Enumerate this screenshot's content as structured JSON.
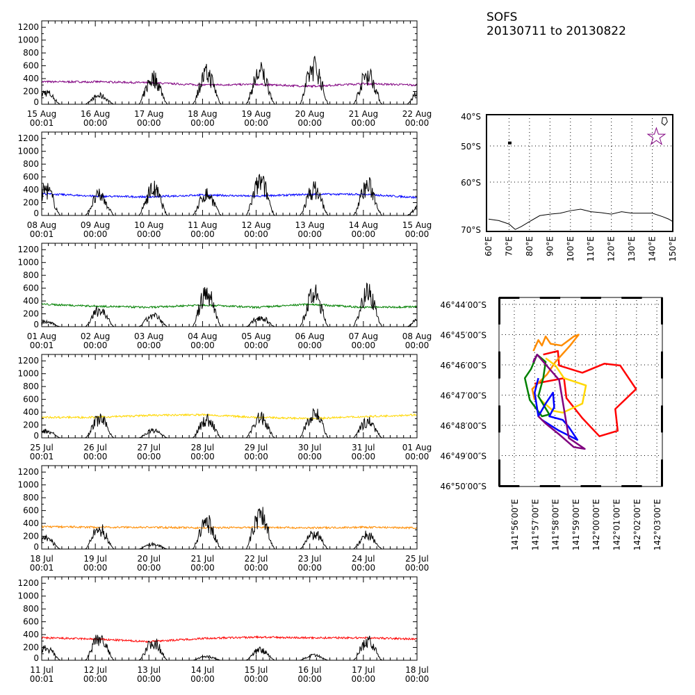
{
  "title": {
    "line1": "SOFS",
    "line2": "20130711 to 20130822"
  },
  "chart_data": [
    {
      "type": "line",
      "ylim": [
        0,
        1300
      ],
      "yticks": [
        "0",
        "200",
        "400",
        "600",
        "800",
        "1000",
        "1200"
      ],
      "xticks": [
        [
          "15 Aug",
          "00:01"
        ],
        [
          "16 Aug",
          "00:00"
        ],
        [
          "17 Aug",
          "00:00"
        ],
        [
          "18 Aug",
          "00:00"
        ],
        [
          "19 Aug",
          "00:00"
        ],
        [
          "20 Aug",
          "00:00"
        ],
        [
          "21 Aug",
          "00:00"
        ],
        [
          "22 Aug",
          "00:00"
        ]
      ],
      "series": [
        {
          "color": "#800080",
          "daily_level": [
            350,
            350,
            335,
            300,
            310,
            280,
            320,
            300,
            310
          ]
        },
        {
          "color": "#000000",
          "daily_peak": [
            250,
            180,
            550,
            640,
            680,
            790,
            640,
            300
          ]
        }
      ]
    },
    {
      "type": "line",
      "ylim": [
        0,
        1300
      ],
      "yticks": [
        "0",
        "200",
        "400",
        "600",
        "800",
        "1000",
        "1200"
      ],
      "xticks": [
        [
          "08 Aug",
          "00:01"
        ],
        [
          "09 Aug",
          "00:00"
        ],
        [
          "10 Aug",
          "00:00"
        ],
        [
          "11 Aug",
          "00:00"
        ],
        [
          "12 Aug",
          "00:00"
        ],
        [
          "13 Aug",
          "00:00"
        ],
        [
          "14 Aug",
          "00:00"
        ],
        [
          "15 Aug",
          "00:00"
        ]
      ],
      "series": [
        {
          "color": "#0000ff",
          "daily_level": [
            340,
            300,
            290,
            320,
            300,
            330,
            330,
            280,
            340
          ]
        },
        {
          "color": "#000000",
          "daily_peak": [
            550,
            420,
            560,
            450,
            700,
            550,
            620,
            200
          ]
        }
      ]
    },
    {
      "type": "line",
      "ylim": [
        0,
        1300
      ],
      "yticks": [
        "0",
        "200",
        "400",
        "600",
        "800",
        "1000",
        "1200"
      ],
      "xticks": [
        [
          "01 Aug",
          "00:01"
        ],
        [
          "02 Aug",
          "00:00"
        ],
        [
          "03 Aug",
          "00:00"
        ],
        [
          "04 Aug",
          "00:00"
        ],
        [
          "05 Aug",
          "00:00"
        ],
        [
          "06 Aug",
          "00:00"
        ],
        [
          "07 Aug",
          "00:00"
        ],
        [
          "08 Aug",
          "00:00"
        ]
      ],
      "series": [
        {
          "color": "#008000",
          "daily_level": [
            350,
            320,
            300,
            340,
            300,
            350,
            300,
            310,
            280
          ]
        },
        {
          "color": "#000000",
          "daily_peak": [
            100,
            350,
            230,
            700,
            200,
            680,
            720,
            180
          ]
        }
      ]
    },
    {
      "type": "line",
      "ylim": [
        0,
        1300
      ],
      "yticks": [
        "0",
        "200",
        "400",
        "600",
        "800",
        "1000",
        "1200"
      ],
      "xticks": [
        [
          "25 Jul",
          "00:01"
        ],
        [
          "26 Jul",
          "00:00"
        ],
        [
          "27 Jul",
          "00:00"
        ],
        [
          "28 Jul",
          "00:00"
        ],
        [
          "29 Jul",
          "00:00"
        ],
        [
          "30 Jul",
          "00:00"
        ],
        [
          "31 Jul",
          "00:00"
        ],
        [
          "01 Aug",
          "00:00"
        ]
      ],
      "series": [
        {
          "color": "#ffd700",
          "daily_level": [
            320,
            320,
            350,
            360,
            320,
            300,
            330,
            360,
            360
          ]
        },
        {
          "color": "#000000",
          "daily_peak": [
            150,
            400,
            150,
            380,
            420,
            550,
            350,
            0
          ]
        }
      ]
    },
    {
      "type": "line",
      "ylim": [
        0,
        1300
      ],
      "yticks": [
        "0",
        "200",
        "400",
        "600",
        "800",
        "1000",
        "1200"
      ],
      "xticks": [
        [
          "18 Jul",
          "00:01"
        ],
        [
          "19 Jul",
          "00:00"
        ],
        [
          "20 Jul",
          "00:00"
        ],
        [
          "21 Jul",
          "00:00"
        ],
        [
          "22 Jul",
          "00:00"
        ],
        [
          "23 Jul",
          "00:00"
        ],
        [
          "24 Jul",
          "00:00"
        ],
        [
          "25 Jul",
          "00:00"
        ]
      ],
      "series": [
        {
          "color": "#ff8c00",
          "daily_level": [
            350,
            340,
            340,
            330,
            340,
            330,
            340,
            330,
            340
          ]
        },
        {
          "color": "#000000",
          "daily_peak": [
            220,
            420,
            100,
            560,
            720,
            320,
            300,
            0
          ]
        }
      ]
    },
    {
      "type": "line",
      "ylim": [
        0,
        1300
      ],
      "yticks": [
        "0",
        "200",
        "400",
        "600",
        "800",
        "1000",
        "1200"
      ],
      "xticks": [
        [
          "11 Jul",
          "00:01"
        ],
        [
          "12 Jul",
          "00:00"
        ],
        [
          "13 Jul",
          "00:00"
        ],
        [
          "14 Jul",
          "00:00"
        ],
        [
          "15 Jul",
          "00:00"
        ],
        [
          "16 Jul",
          "00:00"
        ],
        [
          "17 Jul",
          "00:00"
        ],
        [
          "18 Jul",
          "00:00"
        ]
      ],
      "series": [
        {
          "color": "#ff0000",
          "daily_level": [
            350,
            330,
            290,
            340,
            360,
            350,
            350,
            330,
            340
          ]
        },
        {
          "color": "#000000",
          "daily_peak": [
            250,
            460,
            380,
            80,
            230,
            100,
            400,
            0
          ]
        }
      ]
    },
    {
      "type": "map",
      "lat_ticks": [
        "40°S",
        "50°S",
        "60°S",
        "70°S"
      ],
      "lat_values": [
        -40,
        -50,
        -60,
        -70
      ],
      "lon_ticks": [
        "60°E",
        "70°E",
        "80°E",
        "90°E",
        "100°E",
        "110°E",
        "120°E",
        "130°E",
        "140°E",
        "150°E"
      ],
      "lon_range": [
        60,
        150
      ],
      "lat_range": [
        -40,
        -70
      ],
      "grid": true,
      "marker": {
        "shape": "star",
        "color": "#800080",
        "lon": 142,
        "lat": -47
      }
    },
    {
      "type": "map",
      "grid": true,
      "lat_ticks": [
        "46°44′00″S",
        "46°45′00″S",
        "46°46′00″S",
        "46°47′00″S",
        "46°48′00″S",
        "46°49′00″S",
        "46°50′00″S"
      ],
      "lon_ticks": [
        "141°56′00″E",
        "141°57′00″E",
        "141°58′00″E",
        "141°59′00″E",
        "142°00′00″E",
        "142°01′00″E",
        "142°02′00″E",
        "142°03′00″E"
      ],
      "tracks": [
        {
          "color": "#ff0000",
          "points": [
            [
              141.957,
              -46.761
            ],
            [
              141.969,
              -46.759
            ],
            [
              141.97,
              -46.767
            ],
            [
              141.989,
              -46.771
            ],
            [
              142.007,
              -46.766
            ],
            [
              142.02,
              -46.767
            ],
            [
              142.033,
              -46.78
            ],
            [
              142.016,
              -46.791
            ],
            [
              142.018,
              -46.803
            ],
            [
              142.003,
              -46.806
            ],
            [
              141.989,
              -46.796
            ],
            [
              141.976,
              -46.785
            ],
            [
              141.974,
              -46.774
            ],
            [
              141.95,
              -46.777
            ]
          ]
        },
        {
          "color": "#ff8c00",
          "points": [
            [
              141.949,
              -46.759
            ],
            [
              141.953,
              -46.753
            ],
            [
              141.956,
              -46.756
            ],
            [
              141.959,
              -46.751
            ],
            [
              141.963,
              -46.755
            ],
            [
              141.972,
              -46.756
            ],
            [
              141.982,
              -46.751
            ],
            [
              141.986,
              -46.75
            ],
            [
              141.979,
              -46.756
            ],
            [
              141.967,
              -46.765
            ],
            [
              141.96,
              -46.772
            ],
            [
              141.948,
              -46.78
            ],
            [
              141.95,
              -46.786
            ]
          ]
        },
        {
          "color": "#ffd700",
          "points": [
            [
              141.959,
              -46.763
            ],
            [
              141.967,
              -46.767
            ],
            [
              141.974,
              -46.774
            ],
            [
              141.992,
              -46.778
            ],
            [
              141.989,
              -46.788
            ],
            [
              141.973,
              -46.793
            ],
            [
              141.965,
              -46.792
            ],
            [
              141.955,
              -46.786
            ]
          ]
        },
        {
          "color": "#008000",
          "points": [
            [
              141.952,
              -46.761
            ],
            [
              141.959,
              -46.765
            ],
            [
              141.957,
              -46.774
            ],
            [
              141.953,
              -46.784
            ],
            [
              141.962,
              -46.794
            ],
            [
              141.956,
              -46.795
            ],
            [
              141.946,
              -46.786
            ],
            [
              141.942,
              -46.774
            ],
            [
              141.947,
              -46.769
            ],
            [
              141.952,
              -46.761
            ]
          ]
        },
        {
          "color": "#0000ff",
          "points": [
            [
              141.953,
              -46.774
            ],
            [
              141.95,
              -46.782
            ],
            [
              141.953,
              -46.795
            ],
            [
              141.959,
              -46.788
            ],
            [
              141.965,
              -46.782
            ],
            [
              141.966,
              -46.79
            ],
            [
              141.962,
              -46.795
            ],
            [
              141.973,
              -46.797
            ],
            [
              141.978,
              -46.801
            ],
            [
              141.985,
              -46.808
            ],
            [
              141.97,
              -46.803
            ],
            [
              141.956,
              -46.797
            ]
          ]
        },
        {
          "color": "#800080",
          "points": [
            [
              141.95,
              -46.763
            ],
            [
              141.949,
              -46.765
            ],
            [
              141.952,
              -46.761
            ],
            [
              141.97,
              -46.775
            ],
            [
              141.978,
              -46.807
            ],
            [
              141.991,
              -46.813
            ],
            [
              141.982,
              -46.812
            ],
            [
              141.97,
              -46.805
            ],
            [
              141.959,
              -46.799
            ],
            [
              141.953,
              -46.795
            ]
          ]
        }
      ]
    }
  ]
}
